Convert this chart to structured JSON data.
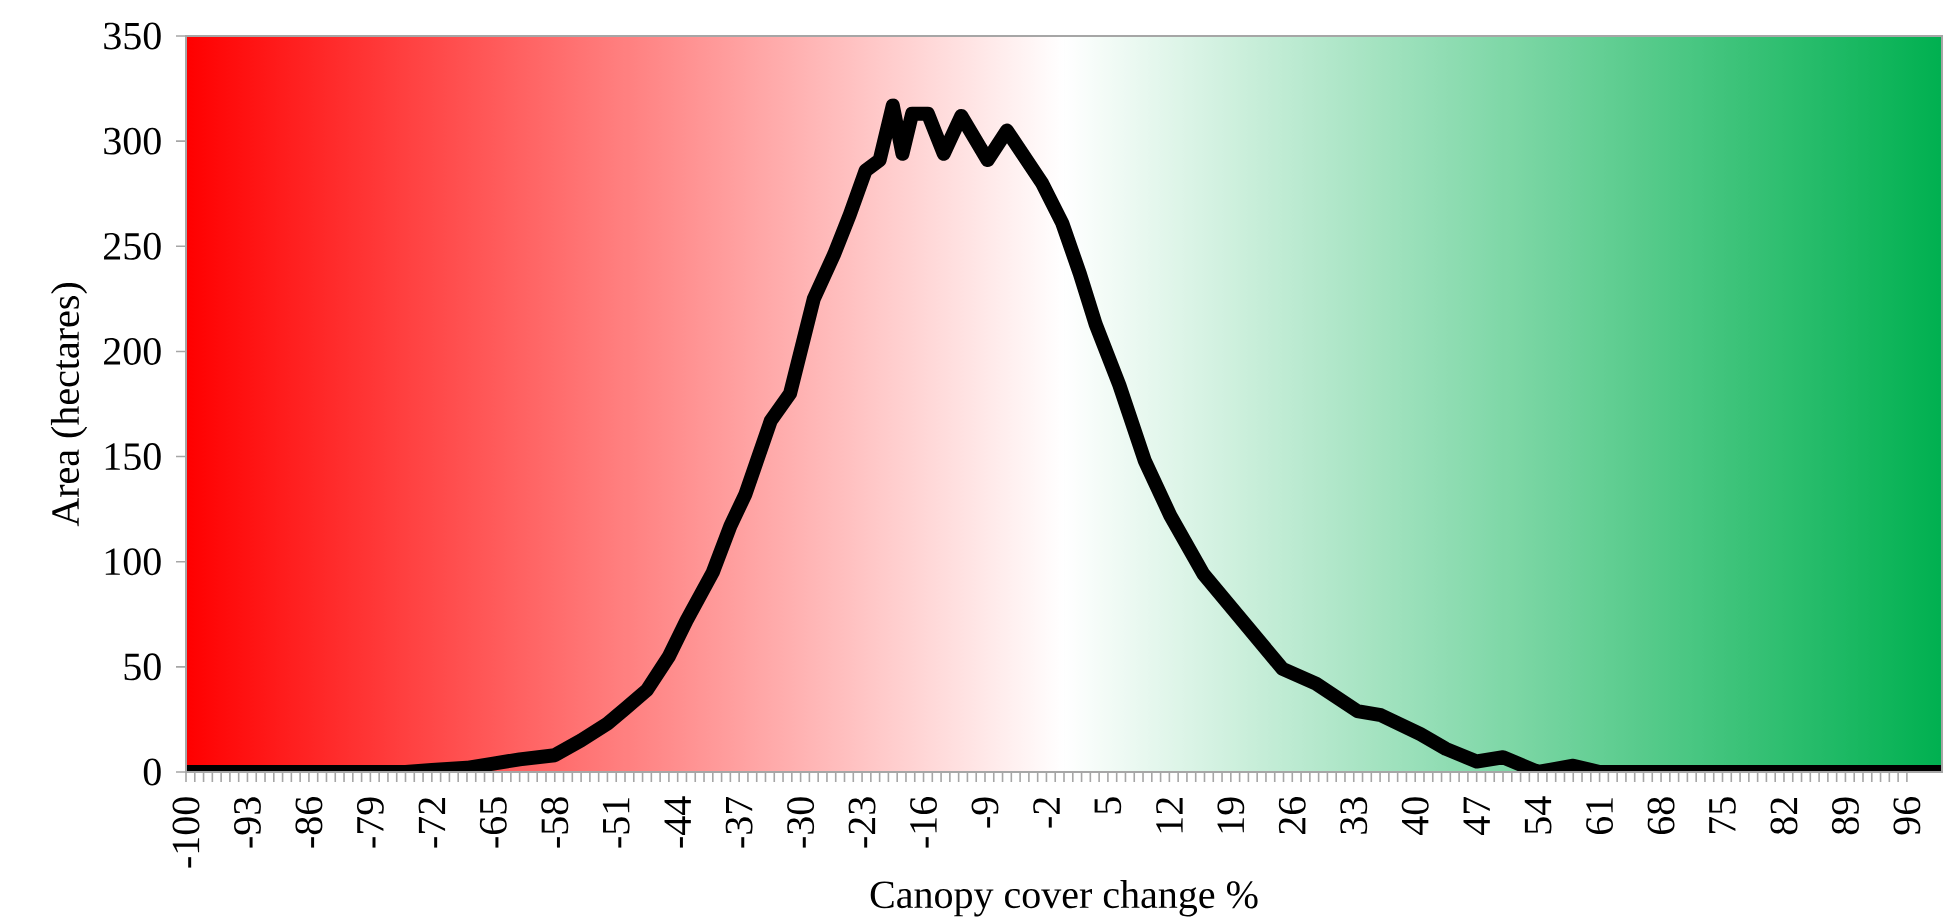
{
  "chart_data": {
    "type": "line",
    "xlabel": "Canopy cover change %",
    "ylabel": "Area (hectares)",
    "x": [
      -100,
      -90,
      -80,
      -75,
      -72,
      -68,
      -65,
      -62,
      -58,
      -55,
      -52,
      -50,
      -47.5,
      -45,
      -43,
      -40,
      -38,
      -36.3,
      -33.4,
      -31.2,
      -28.5,
      -26.2,
      -24.4,
      -22.6,
      -21,
      -19.5,
      -18.4,
      -17.3,
      -15.5,
      -13.7,
      -11.7,
      -8.7,
      -6.5,
      -2.5,
      -0.2,
      1.8,
      3.6,
      6.3,
      9.2,
      12.1,
      15.9,
      19.7,
      24.9,
      28.7,
      33.4,
      36.1,
      40.6,
      43.5,
      47,
      50,
      54,
      58,
      61,
      70,
      80,
      90,
      100
    ],
    "series": [
      {
        "color": "#000000",
        "values": [
          0,
          0,
          0,
          0,
          1,
          2,
          4,
          6,
          8,
          15,
          23,
          30,
          39,
          55,
          72,
          95,
          117,
          132,
          167,
          180,
          225,
          246,
          265,
          286,
          291,
          317,
          294,
          313,
          313,
          294,
          312,
          291,
          305,
          280,
          261,
          237,
          213,
          184,
          148,
          122,
          94,
          75,
          49,
          42,
          29,
          27,
          18,
          11,
          5,
          7,
          0,
          3,
          0,
          0,
          0,
          0,
          0
        ]
      }
    ],
    "xlim": [
      -100,
      100
    ],
    "ylim": [
      0,
      350
    ],
    "xticks": [
      -100,
      -93,
      -86,
      -79,
      -72,
      -65,
      -58,
      -51,
      -44,
      -37,
      -30,
      -23,
      -16,
      -9,
      -2,
      5,
      12,
      19,
      26,
      33,
      40,
      47,
      54,
      61,
      68,
      75,
      82,
      89,
      96
    ],
    "yticks": [
      0,
      50,
      100,
      150,
      200,
      250,
      300,
      350
    ],
    "bands": [
      {
        "axis": "x",
        "from": -100,
        "to": 0,
        "color": "#ff0000"
      },
      {
        "axis": "x",
        "from": 0,
        "to": 100,
        "color": "#00b050"
      }
    ],
    "grid": false,
    "marker": "none",
    "line_style": "solid"
  }
}
